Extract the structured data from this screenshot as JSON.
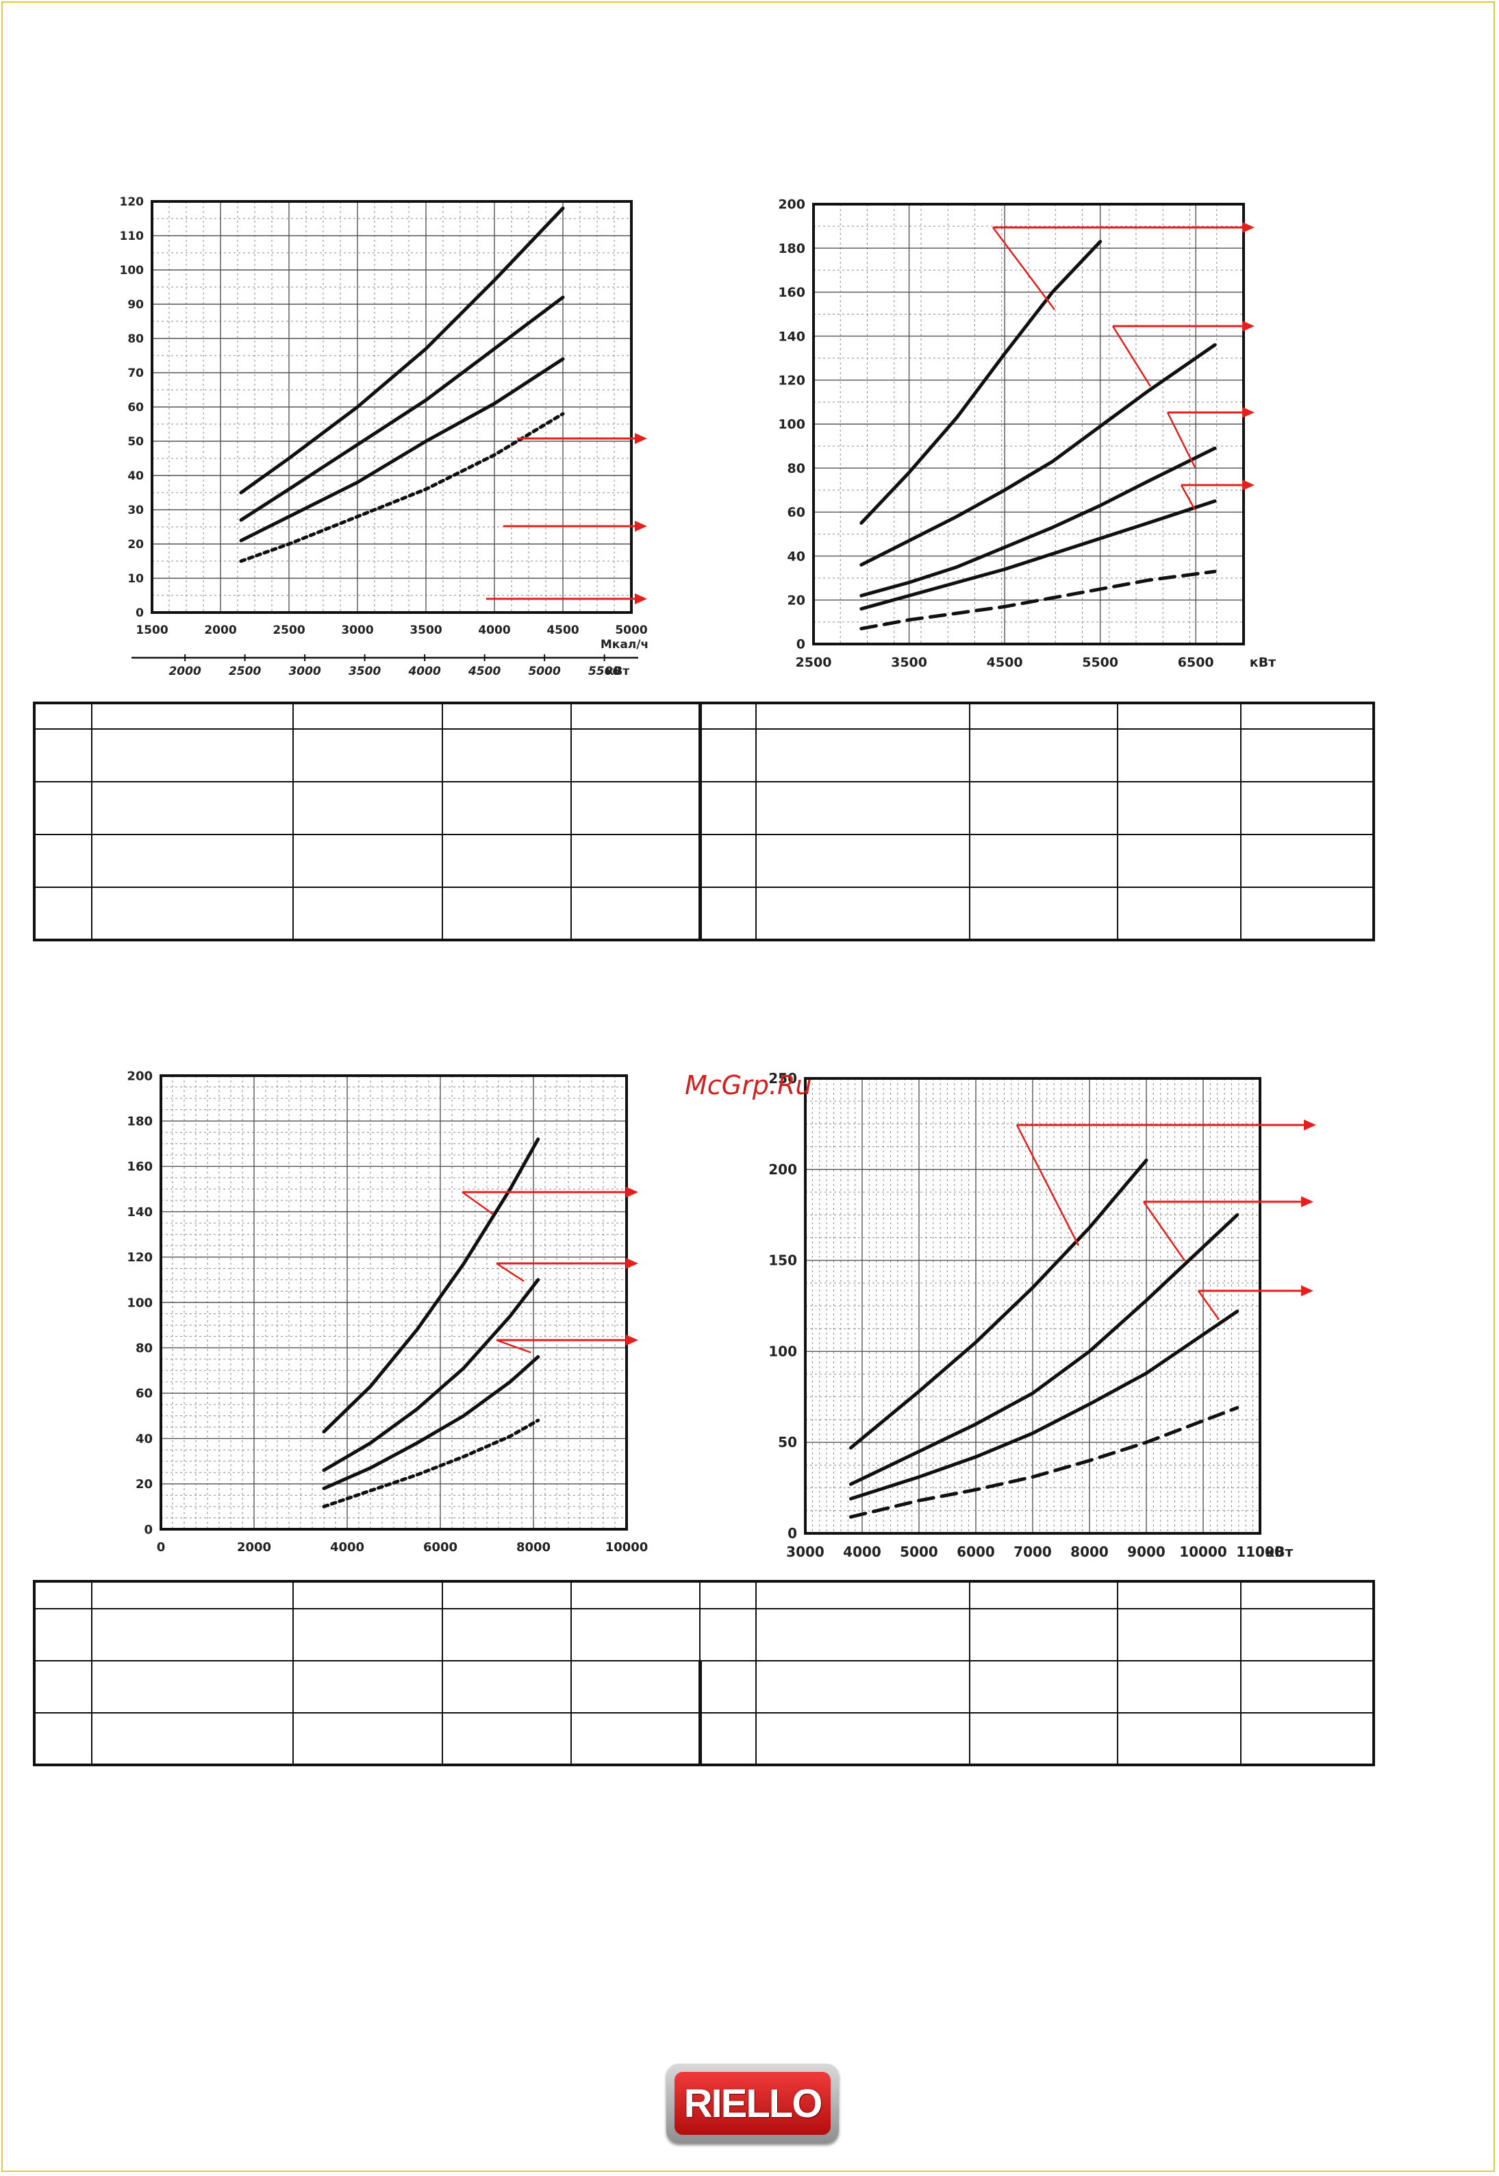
{
  "watermark": "McGrp.Ru",
  "logo_text": "RIELLO",
  "colors": {
    "arrow": "#e4201f",
    "curve": "#111111",
    "grid": "#7a7a7a",
    "watermark": "#d21f1f"
  },
  "chart_data": [
    {
      "type": "line",
      "x": [
        2150,
        2500,
        3000,
        3500,
        4000,
        4500
      ],
      "xlim": [
        1500,
        5000
      ],
      "xticks": [
        1500,
        2000,
        2500,
        3000,
        3500,
        4000,
        4500,
        5000
      ],
      "xunit": "Мкал/ч",
      "x2ticks": [
        "2000",
        "2500",
        "3000",
        "3500",
        "4000",
        "4500",
        "5000",
        "5500"
      ],
      "x2unit": "кВт",
      "ylim": [
        0,
        120
      ],
      "yticks": [
        0,
        10,
        20,
        30,
        40,
        50,
        60,
        70,
        80,
        90,
        100,
        110,
        120
      ],
      "series": [
        {
          "style": "solid",
          "values": [
            35,
            45,
            60,
            77,
            97,
            118
          ]
        },
        {
          "style": "solid",
          "values": [
            27,
            36,
            49,
            62,
            77,
            92
          ]
        },
        {
          "style": "solid",
          "values": [
            21,
            28,
            38,
            50,
            61,
            74
          ]
        },
        {
          "style": "dotted",
          "values": [
            15,
            20,
            28,
            36,
            46,
            58
          ]
        }
      ]
    },
    {
      "type": "line",
      "x": [
        3000,
        3500,
        4000,
        4500,
        5000,
        5500,
        6000,
        6700
      ],
      "xlim": [
        2500,
        7000
      ],
      "xticks": [
        2500,
        3500,
        4500,
        5500,
        6500
      ],
      "xunit": "кВт",
      "ylim": [
        0,
        200
      ],
      "yticks": [
        0,
        20,
        40,
        60,
        80,
        100,
        120,
        140,
        160,
        180,
        200
      ],
      "series": [
        {
          "style": "solid",
          "values": [
            55,
            78,
            103,
            132,
            160,
            183,
            null,
            null
          ]
        },
        {
          "style": "solid",
          "values": [
            36,
            47,
            58,
            70,
            83,
            99,
            115,
            136
          ]
        },
        {
          "style": "solid",
          "values": [
            22,
            28,
            35,
            44,
            53,
            63,
            74,
            89
          ]
        },
        {
          "style": "solid",
          "values": [
            16,
            22,
            28,
            34,
            41,
            48,
            55,
            65
          ]
        },
        {
          "style": "dashed",
          "values": [
            7,
            11,
            14,
            17,
            21,
            25,
            29,
            33
          ]
        }
      ]
    },
    {
      "type": "line",
      "x": [
        3500,
        4500,
        5500,
        6500,
        7500,
        8100
      ],
      "xlim": [
        0,
        10000
      ],
      "xticks": [
        0,
        2000,
        4000,
        6000,
        8000,
        10000
      ],
      "ylim": [
        0,
        200
      ],
      "yticks": [
        0,
        20,
        40,
        60,
        80,
        100,
        120,
        140,
        160,
        180,
        200
      ],
      "series": [
        {
          "style": "solid",
          "values": [
            43,
            63,
            88,
            117,
            150,
            172
          ]
        },
        {
          "style": "solid",
          "values": [
            26,
            38,
            53,
            71,
            94,
            110
          ]
        },
        {
          "style": "solid",
          "values": [
            18,
            27,
            38,
            50,
            65,
            76
          ]
        },
        {
          "style": "dotted",
          "values": [
            10,
            17,
            24,
            32,
            41,
            48
          ]
        }
      ]
    },
    {
      "type": "line",
      "x": [
        3800,
        5000,
        6000,
        7000,
        8000,
        9000,
        10600
      ],
      "xlim": [
        3000,
        11000
      ],
      "xticks": [
        3000,
        4000,
        5000,
        6000,
        7000,
        8000,
        9000,
        10000,
        11000
      ],
      "xunit": "кВт",
      "ylim": [
        0,
        250
      ],
      "yticks": [
        0,
        50,
        100,
        150,
        200,
        250
      ],
      "series": [
        {
          "style": "solid",
          "values": [
            47,
            78,
            105,
            135,
            168,
            205,
            null
          ]
        },
        {
          "style": "solid",
          "values": [
            27,
            45,
            60,
            77,
            100,
            128,
            175
          ]
        },
        {
          "style": "solid",
          "values": [
            19,
            31,
            42,
            55,
            71,
            88,
            122
          ]
        },
        {
          "style": "dashed",
          "values": [
            9,
            18,
            24,
            31,
            40,
            50,
            69
          ]
        }
      ]
    }
  ]
}
